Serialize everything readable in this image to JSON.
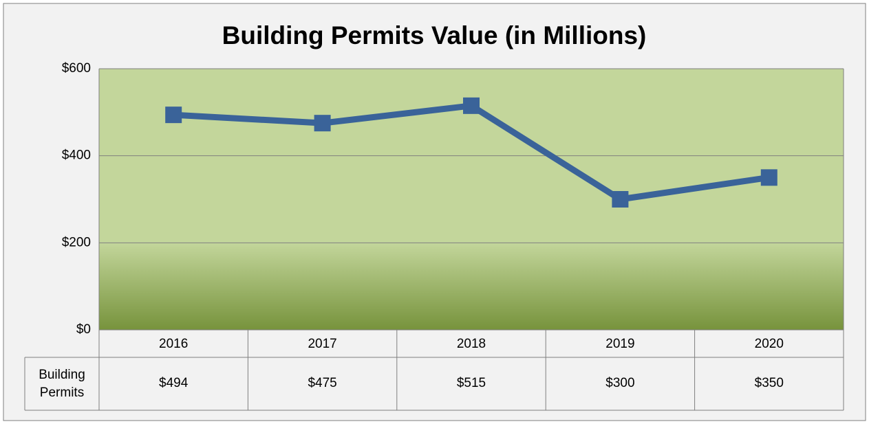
{
  "chart_data": {
    "type": "line",
    "title": "Building Permits Value (in Millions)",
    "categories": [
      "2016",
      "2017",
      "2018",
      "2019",
      "2020"
    ],
    "series": [
      {
        "name": "Building Permits",
        "color": "#3a6399",
        "values": [
          494,
          475,
          515,
          300,
          350
        ],
        "value_labels": [
          "$494",
          "$475",
          "$515",
          "$300",
          "$350"
        ]
      }
    ],
    "ylim": [
      0,
      600
    ],
    "yticks": [
      {
        "value": 0,
        "label": "$0"
      },
      {
        "value": 200,
        "label": "$200"
      },
      {
        "value": 400,
        "label": "$400"
      },
      {
        "value": 600,
        "label": "$600"
      }
    ],
    "grid": true
  }
}
